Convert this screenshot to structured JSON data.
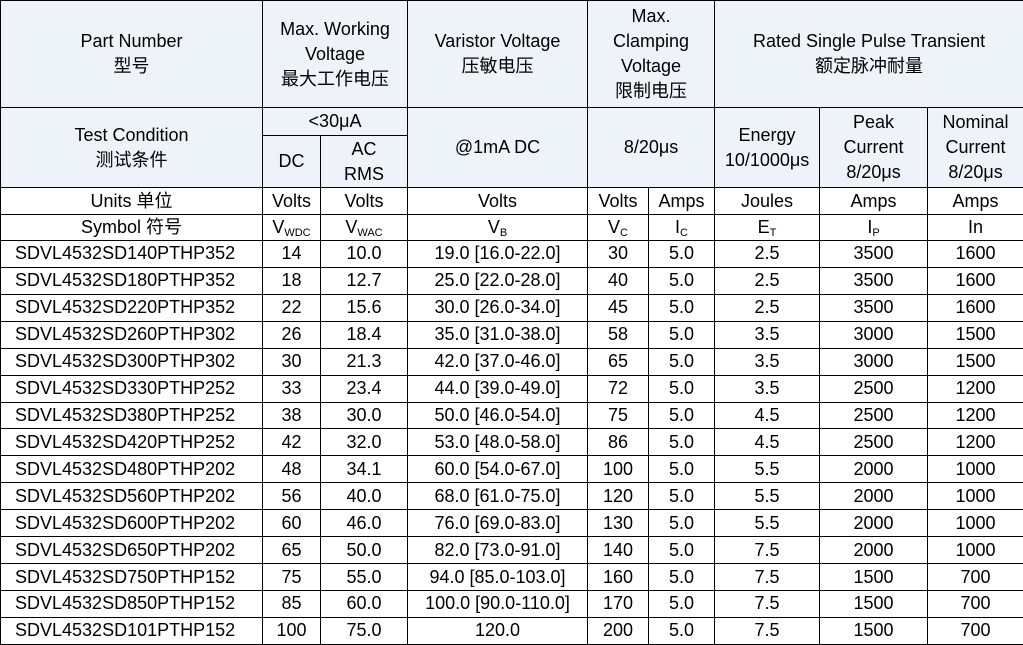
{
  "header": {
    "part_number": {
      "en": "Part Number",
      "zh": "型号"
    },
    "max_working_voltage": {
      "lines": [
        "Max. Working",
        "Voltage"
      ],
      "zh": "最大工作电压"
    },
    "varistor_voltage": {
      "en": "Varistor Voltage",
      "zh": "压敏电压"
    },
    "max_clamping_voltage": {
      "lines": [
        "Max.",
        "Clamping",
        "Voltage"
      ],
      "zh": "限制电压"
    },
    "rated_transient": {
      "en": "Rated Single Pulse Transient",
      "zh": "额定脉冲耐量"
    }
  },
  "test_condition": {
    "label": {
      "en": "Test Condition",
      "zh": "测试条件"
    },
    "leakage": "<30μA",
    "dc": "DC",
    "ac_rms": [
      "AC",
      "RMS"
    ],
    "varistor": "@1mA DC",
    "clamping": "8/20μs",
    "energy": [
      "Energy",
      "10/1000μs"
    ],
    "peak": [
      "Peak",
      "Current",
      "8/20μs"
    ],
    "nominal": [
      "Nominal",
      "Current",
      "8/20μs"
    ]
  },
  "units": {
    "label": "Units  单位",
    "values": [
      "Volts",
      "Volts",
      "Volts",
      "Volts",
      "Amps",
      "Joules",
      "Amps",
      "Amps"
    ]
  },
  "symbols": {
    "label": "Symbol  符号",
    "values": [
      {
        "main": "V",
        "sub": "WDC"
      },
      {
        "main": "V",
        "sub": "WAC"
      },
      {
        "main": "V",
        "sub": "B"
      },
      {
        "main": "V",
        "sub": "C"
      },
      {
        "main": "I",
        "sub": "C"
      },
      {
        "main": "E",
        "sub": "T"
      },
      {
        "main": "I",
        "sub": "P"
      },
      {
        "main": "In",
        "sub": null
      }
    ]
  },
  "table": {
    "rows": [
      [
        "SDVL4532SD140PTHP352",
        "14",
        "10.0",
        "19.0 [16.0-22.0]",
        "30",
        "5.0",
        "2.5",
        "3500",
        "1600"
      ],
      [
        "SDVL4532SD180PTHP352",
        "18",
        "12.7",
        "25.0 [22.0-28.0]",
        "40",
        "5.0",
        "2.5",
        "3500",
        "1600"
      ],
      [
        "SDVL4532SD220PTHP352",
        "22",
        "15.6",
        "30.0 [26.0-34.0]",
        "45",
        "5.0",
        "2.5",
        "3500",
        "1600"
      ],
      [
        "SDVL4532SD260PTHP302",
        "26",
        "18.4",
        "35.0 [31.0-38.0]",
        "58",
        "5.0",
        "3.5",
        "3000",
        "1500"
      ],
      [
        "SDVL4532SD300PTHP302",
        "30",
        "21.3",
        "42.0 [37.0-46.0]",
        "65",
        "5.0",
        "3.5",
        "3000",
        "1500"
      ],
      [
        "SDVL4532SD330PTHP252",
        "33",
        "23.4",
        "44.0 [39.0-49.0]",
        "72",
        "5.0",
        "3.5",
        "2500",
        "1200"
      ],
      [
        "SDVL4532SD380PTHP252",
        "38",
        "30.0",
        "50.0 [46.0-54.0]",
        "75",
        "5.0",
        "4.5",
        "2500",
        "1200"
      ],
      [
        "SDVL4532SD420PTHP252",
        "42",
        "32.0",
        "53.0 [48.0-58.0]",
        "86",
        "5.0",
        "4.5",
        "2500",
        "1200"
      ],
      [
        "SDVL4532SD480PTHP202",
        "48",
        "34.1",
        "60.0 [54.0-67.0]",
        "100",
        "5.0",
        "5.5",
        "2000",
        "1000"
      ],
      [
        "SDVL4532SD560PTHP202",
        "56",
        "40.0",
        "68.0 [61.0-75.0]",
        "120",
        "5.0",
        "5.5",
        "2000",
        "1000"
      ],
      [
        "SDVL4532SD600PTHP202",
        "60",
        "46.0",
        "76.0 [69.0-83.0]",
        "130",
        "5.0",
        "5.5",
        "2000",
        "1000"
      ],
      [
        "SDVL4532SD650PTHP202",
        "65",
        "50.0",
        "82.0 [73.0-91.0]",
        "140",
        "5.0",
        "7.5",
        "2000",
        "1000"
      ],
      [
        "SDVL4532SD750PTHP152",
        "75",
        "55.0",
        "94.0 [85.0-103.0]",
        "160",
        "5.0",
        "7.5",
        "1500",
        "700"
      ],
      [
        "SDVL4532SD850PTHP152",
        "85",
        "60.0",
        "100.0 [90.0-110.0]",
        "170",
        "5.0",
        "7.5",
        "1500",
        "700"
      ],
      [
        "SDVL4532SD101PTHP152",
        "100",
        "75.0",
        "120.0",
        "200",
        "5.0",
        "7.5",
        "1500",
        "700"
      ]
    ]
  }
}
